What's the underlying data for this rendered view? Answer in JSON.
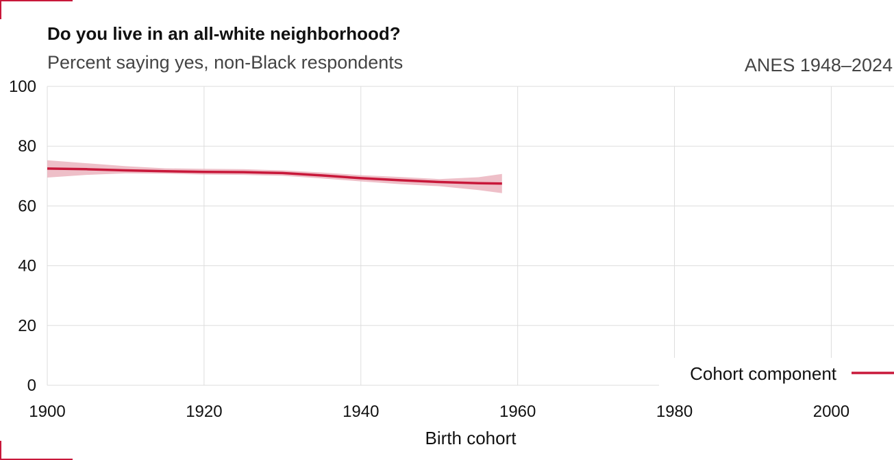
{
  "header": {
    "title": "Do you live in an all-white neighborhood?",
    "subtitle": "Percent saying yes, non-Black respondents",
    "source": "ANES 1948–2024"
  },
  "colors": {
    "accent": "#c8183a",
    "band": "#e8aab5",
    "grid": "#dddddd"
  },
  "chart_data": {
    "type": "line",
    "title": "Do you live in an all-white neighborhood?",
    "subtitle": "Percent saying yes, non-Black respondents",
    "xlabel": "Birth cohort",
    "ylabel": "",
    "xlim": [
      1900,
      2008
    ],
    "ylim": [
      0,
      100
    ],
    "x_ticks": [
      1900,
      1920,
      1940,
      1960,
      1980,
      2000
    ],
    "y_ticks": [
      0,
      20,
      40,
      60,
      80,
      100
    ],
    "grid": true,
    "legend_position": "bottom-right",
    "series": [
      {
        "name": "Cohort component",
        "x": [
          1900,
          1905,
          1910,
          1915,
          1920,
          1925,
          1930,
          1935,
          1940,
          1945,
          1950,
          1955,
          1958
        ],
        "y": [
          72.5,
          72.3,
          71.9,
          71.6,
          71.4,
          71.3,
          71.0,
          70.2,
          69.3,
          68.6,
          68.0,
          67.6,
          67.5
        ],
        "lower": [
          69.5,
          70.4,
          70.9,
          70.8,
          70.5,
          70.4,
          70.1,
          69.2,
          68.2,
          67.3,
          66.6,
          65.3,
          64.3
        ],
        "upper": [
          75.3,
          74.3,
          73.3,
          72.6,
          72.4,
          72.3,
          71.9,
          71.2,
          70.3,
          69.7,
          69.0,
          69.6,
          70.7
        ]
      }
    ]
  }
}
